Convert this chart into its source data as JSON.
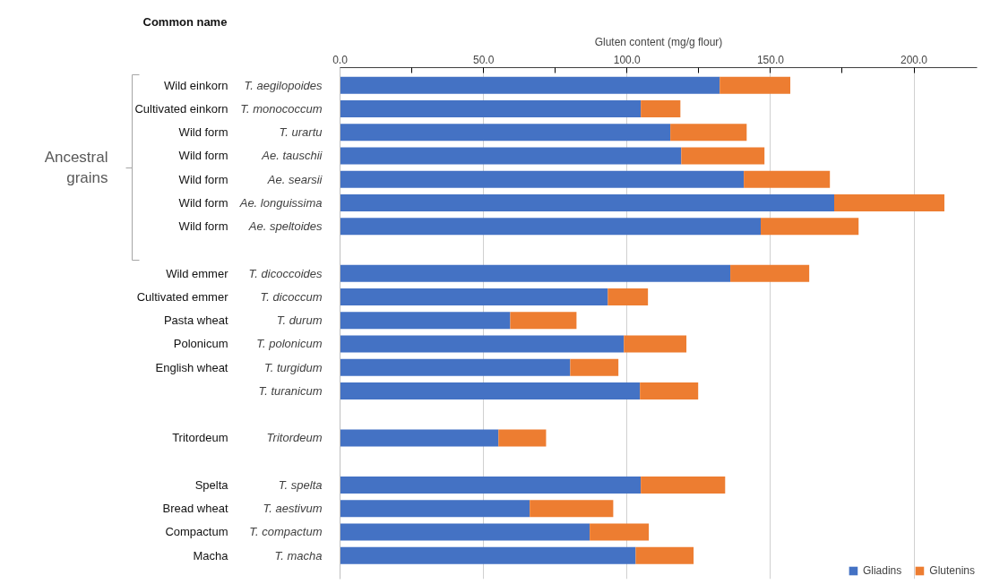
{
  "chart_data": {
    "type": "bar",
    "orientation": "horizontal",
    "stacked": true,
    "xlabel": "Gluten content (mg/g flour)",
    "categories": [
      "T. aegilopoides",
      "T. monococcum",
      "T. urartu",
      "Ae. tauschii",
      "Ae. searsii",
      "Ae. longuissima",
      "Ae. speltoides",
      null,
      "T. dicoccoides",
      "T. dicoccum",
      "T. durum",
      "T. polonicum",
      "T. turgidum",
      "T. turanicum",
      null,
      "Tritordeum",
      null,
      "T. spelta",
      "T. aestivum",
      "T. compactum",
      "T. macha"
    ],
    "series": [
      {
        "name": "Gliadins",
        "color": "#4472c4",
        "values": [
          132.3,
          104.8,
          115.1,
          118.9,
          140.7,
          172.2,
          146.6,
          null,
          136.0,
          93.3,
          59.3,
          98.9,
          80.2,
          104.5,
          null,
          55.2,
          null,
          104.8,
          66.1,
          87.0,
          103.0
        ]
      },
      {
        "name": "Glutenins",
        "color": "#ed7d31",
        "values": [
          24.6,
          13.8,
          26.6,
          29.0,
          30.0,
          38.4,
          34.1,
          null,
          27.5,
          14.0,
          23.1,
          21.8,
          16.8,
          20.3,
          null,
          16.6,
          null,
          29.4,
          29.1,
          20.6,
          20.2
        ]
      }
    ],
    "xlim": [
      0,
      222
    ],
    "xticks": [
      {
        "value": 0,
        "label": "0.0"
      },
      {
        "value": 25,
        "label": null
      },
      {
        "value": 50,
        "label": "50.0"
      },
      {
        "value": 75,
        "label": null
      },
      {
        "value": 100,
        "label": "100.0"
      },
      {
        "value": 125,
        "label": null
      },
      {
        "value": 150,
        "label": "150.0"
      },
      {
        "value": 175,
        "label": null
      },
      {
        "value": 200,
        "label": "200.0"
      }
    ],
    "grid": "x",
    "legend": "bottom right",
    "annotations": [
      "Common name",
      "Ancestral grains",
      "Wild einkorn",
      "Cultivated einkorn",
      "Wild form",
      "Wild form",
      "Wild form",
      "Wild form",
      "Wild form",
      "Wild emmer",
      "Cultivated emmer",
      "Pasta wheat",
      "Polonicum",
      "English wheat",
      null,
      "Tritordeum",
      "Spelta",
      "Bread wheat",
      "Compactum",
      "Macha"
    ]
  }
}
